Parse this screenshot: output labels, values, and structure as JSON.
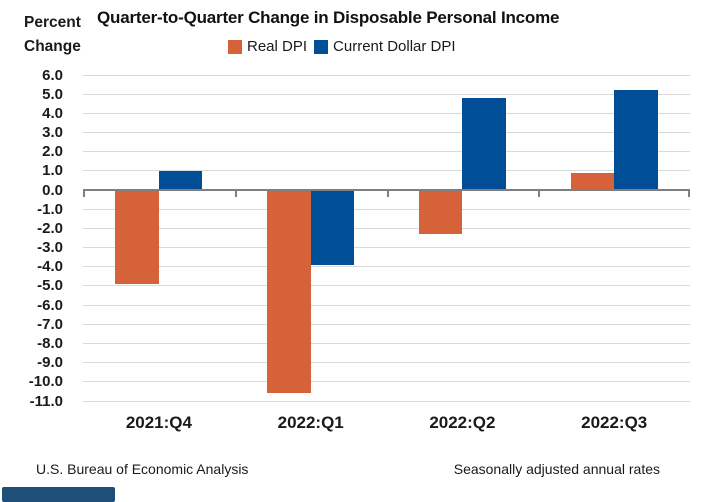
{
  "corner_label": {
    "line1": "Percent",
    "line2": "Change"
  },
  "title": "Quarter-to-Quarter Change in Disposable Personal Income",
  "footer": {
    "source": "U.S. Bureau of Economic Analysis",
    "note": "Seasonally adjusted annual rates"
  },
  "colors": {
    "real_dpi": "#d6623a",
    "current_dollar_dpi": "#004e96",
    "gridline": "#d9d9d9",
    "axis": "#7f7f7f",
    "brand_bar": "#1f4e79",
    "text": "#1a1a1a"
  },
  "chart_data": {
    "type": "bar",
    "title": "Quarter-to-Quarter Change in Disposable Personal Income",
    "categories": [
      "2021:Q4",
      "2022:Q1",
      "2022:Q2",
      "2022:Q3"
    ],
    "series": [
      {
        "name": "Real DPI",
        "color": "#d6623a",
        "values": [
          -4.9,
          -10.6,
          -2.3,
          0.9
        ]
      },
      {
        "name": "Current Dollar DPI",
        "color": "#004e96",
        "values": [
          1.0,
          -3.9,
          4.8,
          5.2
        ]
      }
    ],
    "ylabel": "Percent Change",
    "xlabel": "",
    "ylim": [
      -11.0,
      6.0
    ],
    "ytick_step": 1.0,
    "yticks": [
      "6.0",
      "5.0",
      "4.0",
      "3.0",
      "2.0",
      "1.0",
      "0.0",
      "-1.0",
      "-2.0",
      "-3.0",
      "-4.0",
      "-5.0",
      "-6.0",
      "-7.0",
      "-8.0",
      "-9.0",
      "-10.0",
      "-11.0"
    ],
    "grid": true,
    "legend_position": "top",
    "annotations": [
      "Seasonally adjusted annual rates",
      "U.S. Bureau of Economic Analysis"
    ]
  }
}
